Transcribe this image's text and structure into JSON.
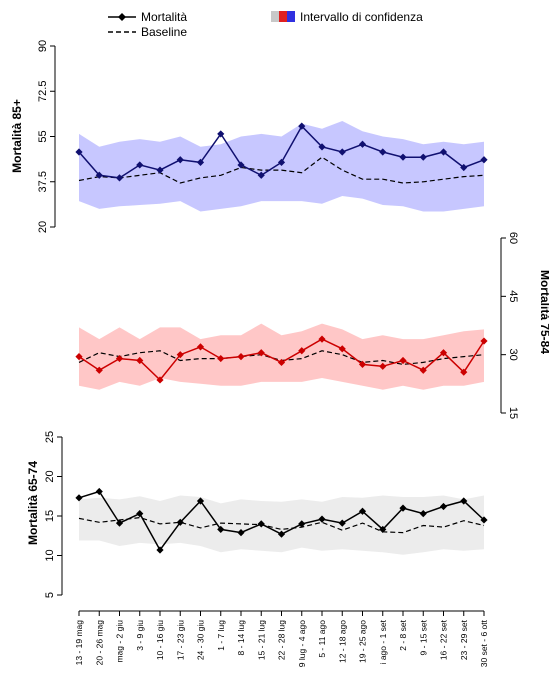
{
  "legend": {
    "mortality_label": "Mortalità",
    "baseline_label": "Baseline",
    "ci_label": "Intervallo di confidenza"
  },
  "chart_data": [
    {
      "type": "line",
      "ylabel": "Mortalità 85+",
      "yticks": [
        20,
        37.5,
        55,
        72.5,
        90
      ],
      "ylim": [
        20,
        90
      ],
      "ci_color": "#c7c7ff",
      "line_color": "#101070",
      "series": [
        {
          "name": "Mortalità",
          "values": [
            49,
            40,
            39,
            44,
            42,
            46,
            45,
            56,
            44,
            40,
            45,
            59,
            51,
            49,
            52,
            49,
            47,
            47,
            49,
            43,
            46
          ]
        },
        {
          "name": "Baseline",
          "values": [
            38,
            39.5,
            39,
            40,
            41,
            37,
            39,
            40,
            43,
            42,
            42,
            41,
            47,
            42,
            38.5,
            38.5,
            37,
            37.5,
            38.5,
            39.5,
            40
          ]
        },
        {
          "name": "CI upper",
          "values": [
            56,
            51,
            53,
            54,
            53,
            55,
            51,
            52,
            55,
            56,
            55,
            60,
            58,
            61,
            57,
            55,
            54,
            52,
            53,
            52,
            53
          ]
        },
        {
          "name": "CI lower",
          "values": [
            30,
            27,
            28,
            28.5,
            29,
            30,
            26,
            27,
            28,
            30,
            30,
            30,
            29,
            32,
            31,
            28.5,
            28,
            26,
            26,
            27,
            28
          ]
        }
      ]
    },
    {
      "type": "line",
      "ylabel": "Mortalità 75-84",
      "yticks": [
        15,
        30,
        45,
        60
      ],
      "ylim": [
        15,
        60
      ],
      "ci_color": "#ffc7c7",
      "line_color": "#cc0000",
      "series": [
        {
          "name": "Mortalità",
          "values": [
            29.5,
            26,
            29,
            28.5,
            23.5,
            30,
            32,
            29,
            29.5,
            30.5,
            28,
            31,
            34,
            31.5,
            27.5,
            27,
            28.5,
            26,
            30.5,
            25.5,
            33.5
          ]
        },
        {
          "name": "Baseline",
          "values": [
            28,
            30.5,
            29.5,
            30.5,
            31,
            28.5,
            29,
            29,
            29.5,
            30,
            28.5,
            29,
            31,
            30,
            28,
            28.5,
            27.5,
            28,
            29,
            29.5,
            30
          ]
        },
        {
          "name": "CI upper",
          "values": [
            37,
            34,
            37,
            34,
            37,
            37,
            34,
            35,
            35,
            38,
            35,
            36,
            38,
            36.5,
            34,
            35,
            34,
            34,
            35,
            36,
            36.5
          ]
        },
        {
          "name": "CI lower",
          "values": [
            22,
            21,
            23,
            22,
            24,
            23,
            22.5,
            22,
            22,
            23,
            23,
            23,
            24,
            23,
            22,
            21,
            22,
            21,
            22,
            22,
            23
          ]
        }
      ]
    },
    {
      "type": "line",
      "ylabel": "Mortalità 65-74",
      "yticks": [
        5,
        10,
        15,
        20,
        25
      ],
      "ylim": [
        5,
        25
      ],
      "ci_color": "#ececec",
      "line_color": "#000000",
      "categories": [
        "13 - 19 mag",
        "20 - 26 mag",
        "mag - 2 giu",
        "3 - 9 giu",
        "10 - 16 giu",
        "17 - 23 giu",
        "24 - 30 giu",
        "1 - 7 lug",
        "8 - 14 lug",
        "15 - 21 lug",
        "22 - 28 lug",
        "9 lug - 4 ago",
        "5 - 11 ago",
        "12 - 18 ago",
        "19 - 25 ago",
        "i ago - 1 set",
        "2 - 8 set",
        "9 - 15 set",
        "16 - 22 set",
        "23 - 29 set",
        "30 set - 6 ott"
      ],
      "series": [
        {
          "name": "Mortalità",
          "values": [
            17.3,
            18.1,
            14.1,
            15.3,
            10.7,
            14.2,
            16.9,
            13.3,
            12.9,
            14.0,
            12.7,
            14.0,
            14.6,
            14.1,
            15.6,
            13.3,
            16.0,
            15.3,
            16.2,
            16.9,
            14.5
          ]
        },
        {
          "name": "Baseline",
          "values": [
            14.7,
            14.2,
            14.5,
            14.8,
            14.0,
            14.2,
            13.5,
            14.1,
            14.0,
            13.9,
            13.3,
            13.6,
            14.2,
            13.2,
            14.1,
            13.0,
            12.9,
            13.8,
            13.6,
            14.4,
            13.8
          ]
        },
        {
          "name": "CI upper",
          "values": [
            17.1,
            17.3,
            17.1,
            17.5,
            16.9,
            17.6,
            17.4,
            16.6,
            17.1,
            16.9,
            16.8,
            17.1,
            16.8,
            17.4,
            17.3,
            17.6,
            17.4,
            17.4,
            17.6,
            17.1,
            17.6
          ]
        },
        {
          "name": "CI lower",
          "values": [
            11.9,
            11.9,
            11.2,
            11.6,
            11.4,
            11.6,
            11.2,
            10.4,
            10.8,
            10.6,
            10.4,
            11.0,
            10.6,
            10.8,
            10.6,
            10.4,
            10.1,
            10.4,
            10.8,
            10.6,
            10.8
          ]
        }
      ]
    }
  ]
}
